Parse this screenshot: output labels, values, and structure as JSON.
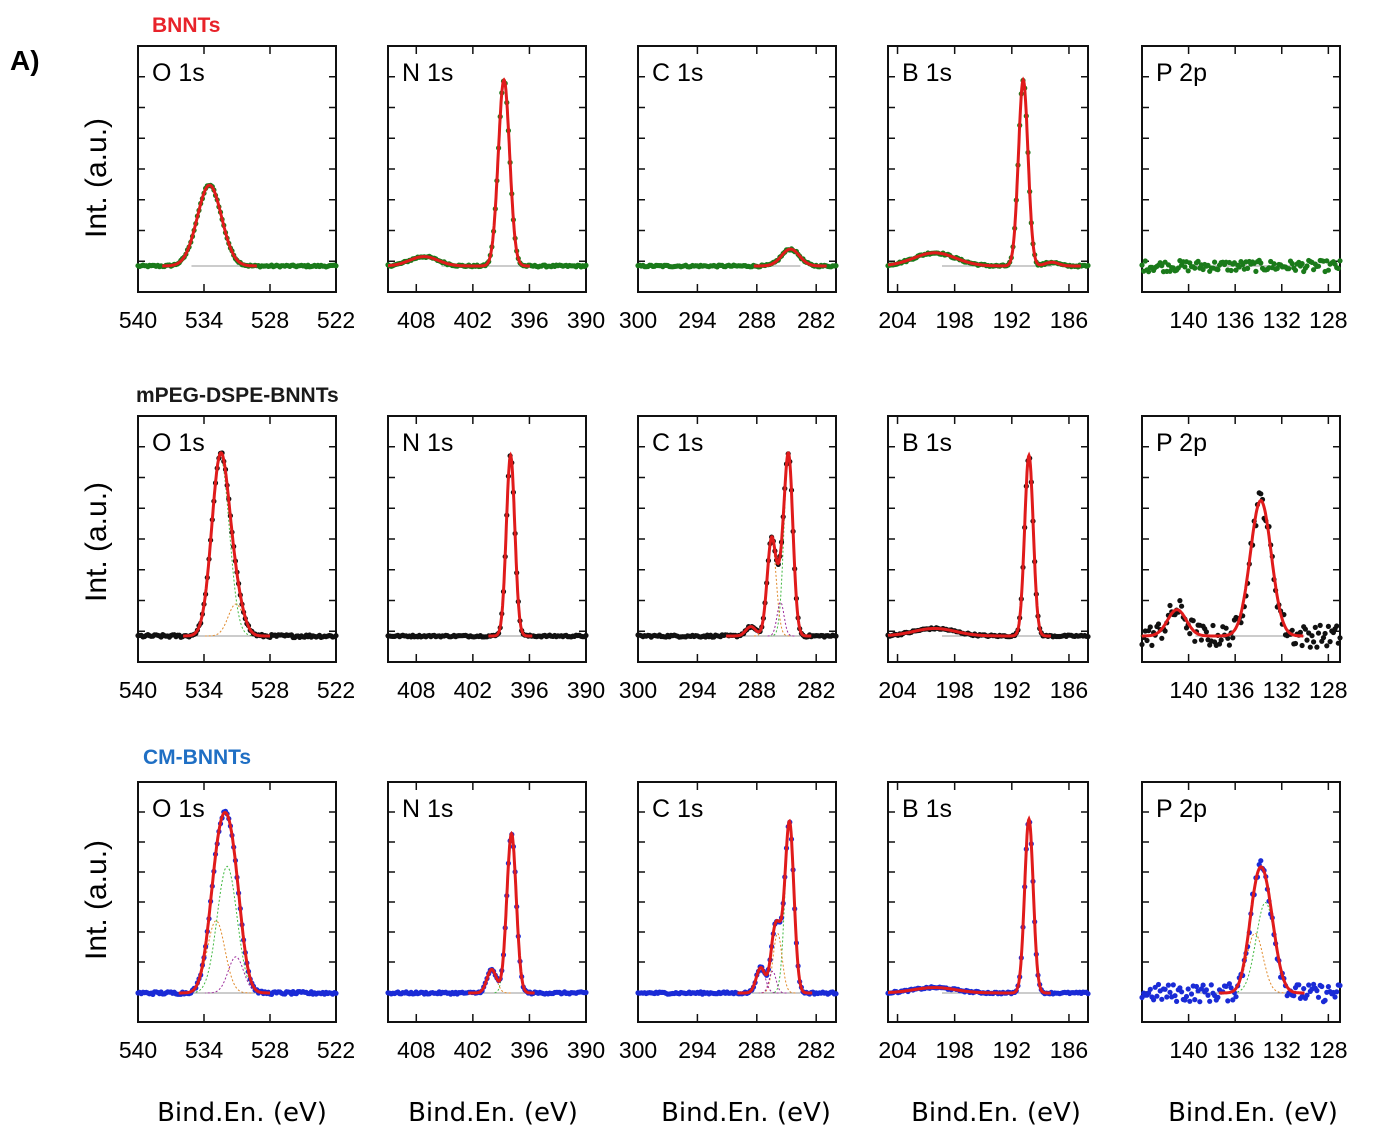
{
  "figure": {
    "panel_label": "A)",
    "x_axis_label": "Bind.En. (eV)",
    "y_axis_label": "Int. (a.u.)"
  },
  "rows": [
    {
      "title": "BNNTs",
      "title_color": "#e8232a",
      "marker_color": "#1a7a1a"
    },
    {
      "title": "mPEG-DSPE-BNNTs",
      "title_color": "#1a1a1a",
      "marker_color": "#111111"
    },
    {
      "title": "CM-BNNTs",
      "title_color": "#1f6fc4",
      "marker_color": "#1a2bd6"
    }
  ],
  "colors": {
    "fit": "#e01b1b",
    "baseline": "#9a9a9a",
    "comp_green": "#41b841",
    "comp_orange": "#e0892a",
    "comp_purple": "#9b2a9b"
  },
  "chart_data": [
    {
      "type": "scatter",
      "row": 0,
      "element": "O 1s",
      "xlim": [
        540,
        522
      ],
      "xticks": [
        "540",
        "534",
        "528",
        "522"
      ],
      "noise": 0.005,
      "series": [
        {
          "name": "",
          "peaks": [
            {
              "center": 533.5,
              "height": 0.43,
              "width": 1.1
            }
          ]
        }
      ]
    },
    {
      "type": "scatter",
      "row": 0,
      "element": "N 1s",
      "xlim": [
        411,
        390
      ],
      "xticks": [
        "408",
        "402",
        "396",
        "390"
      ],
      "noise": 0.005,
      "series": [
        {
          "name": "",
          "peaks": [
            {
              "center": 398.7,
              "height": 0.99,
              "width": 0.6
            },
            {
              "center": 407.2,
              "height": 0.05,
              "width": 1.5
            }
          ]
        }
      ]
    },
    {
      "type": "scatter",
      "row": 0,
      "element": "C 1s",
      "xlim": [
        300,
        280
      ],
      "xticks": [
        "300",
        "294",
        "288",
        "282"
      ],
      "noise": 0.005,
      "series": [
        {
          "name": "",
          "peaks": [
            {
              "center": 284.6,
              "height": 0.09,
              "width": 0.9
            }
          ]
        }
      ]
    },
    {
      "type": "scatter",
      "row": 0,
      "element": "B 1s",
      "xlim": [
        205,
        184
      ],
      "xticks": [
        "204",
        "198",
        "192",
        "186"
      ],
      "noise": 0.005,
      "series": [
        {
          "name": "",
          "peaks": [
            {
              "center": 190.8,
              "height": 0.99,
              "width": 0.5
            },
            {
              "center": 200.1,
              "height": 0.07,
              "width": 2.2
            },
            {
              "center": 187.8,
              "height": 0.02,
              "width": 0.7
            }
          ]
        }
      ]
    },
    {
      "type": "scatter",
      "row": 0,
      "element": "P 2p",
      "xlim": [
        144,
        127
      ],
      "xticks": [
        "140",
        "136",
        "132",
        "128"
      ],
      "noise": 0.03,
      "series": [
        {
          "name": "",
          "peaks": []
        }
      ]
    },
    {
      "type": "scatter",
      "row": 1,
      "element": "O 1s",
      "xlim": [
        540,
        522
      ],
      "xticks": [
        "540",
        "534",
        "528",
        "522"
      ],
      "noise": 0.008,
      "series": [
        {
          "name": "",
          "peaks": [
            {
              "center": 532.5,
              "height": 0.95,
              "width": 0.8
            },
            {
              "center": 531.1,
              "height": 0.17,
              "width": 0.7
            }
          ]
        }
      ]
    },
    {
      "type": "scatter",
      "row": 1,
      "element": "N 1s",
      "xlim": [
        411,
        390
      ],
      "xticks": [
        "408",
        "402",
        "396",
        "390"
      ],
      "noise": 0.005,
      "series": [
        {
          "name": "",
          "peaks": [
            {
              "center": 398.0,
              "height": 0.96,
              "width": 0.45
            }
          ]
        }
      ]
    },
    {
      "type": "scatter",
      "row": 1,
      "element": "C 1s",
      "xlim": [
        300,
        280
      ],
      "xticks": [
        "300",
        "294",
        "288",
        "282"
      ],
      "noise": 0.006,
      "series": [
        {
          "name": "",
          "peaks": [
            {
              "center": 284.8,
              "height": 0.96,
              "width": 0.45
            },
            {
              "center": 286.5,
              "height": 0.52,
              "width": 0.45
            },
            {
              "center": 288.6,
              "height": 0.05,
              "width": 0.5
            },
            {
              "center": 285.6,
              "height": 0.18,
              "width": 0.35
            }
          ]
        }
      ]
    },
    {
      "type": "scatter",
      "row": 1,
      "element": "B 1s",
      "xlim": [
        205,
        184
      ],
      "xticks": [
        "204",
        "198",
        "192",
        "186"
      ],
      "noise": 0.005,
      "series": [
        {
          "name": "",
          "peaks": [
            {
              "center": 190.2,
              "height": 0.96,
              "width": 0.45
            },
            {
              "center": 200.1,
              "height": 0.04,
              "width": 2.2
            }
          ]
        }
      ]
    },
    {
      "type": "scatter",
      "row": 1,
      "element": "P 2p",
      "xlim": [
        144,
        127
      ],
      "xticks": [
        "140",
        "136",
        "132",
        "128"
      ],
      "noise": 0.06,
      "series": [
        {
          "name": "",
          "peaks": [
            {
              "center": 133.8,
              "height": 0.72,
              "width": 0.9
            },
            {
              "center": 141.0,
              "height": 0.14,
              "width": 0.8
            }
          ]
        }
      ]
    },
    {
      "type": "scatter",
      "row": 2,
      "element": "O 1s",
      "xlim": [
        540,
        522
      ],
      "xticks": [
        "540",
        "534",
        "528",
        "522"
      ],
      "noise": 0.008,
      "series": [
        {
          "name": "",
          "peaks": [
            {
              "center": 531.9,
              "height": 0.7,
              "width": 0.9
            },
            {
              "center": 532.9,
              "height": 0.4,
              "width": 0.8
            },
            {
              "center": 531.1,
              "height": 0.2,
              "width": 0.7
            }
          ]
        }
      ]
    },
    {
      "type": "scatter",
      "row": 2,
      "element": "N 1s",
      "xlim": [
        411,
        390
      ],
      "xticks": [
        "408",
        "402",
        "396",
        "390"
      ],
      "noise": 0.006,
      "series": [
        {
          "name": "",
          "peaks": [
            {
              "center": 397.9,
              "height": 0.88,
              "width": 0.5
            },
            {
              "center": 400.0,
              "height": 0.13,
              "width": 0.5
            }
          ]
        }
      ]
    },
    {
      "type": "scatter",
      "row": 2,
      "element": "C 1s",
      "xlim": [
        300,
        280
      ],
      "xticks": [
        "300",
        "294",
        "288",
        "282"
      ],
      "noise": 0.006,
      "series": [
        {
          "name": "",
          "peaks": [
            {
              "center": 284.7,
              "height": 0.94,
              "width": 0.45
            },
            {
              "center": 285.9,
              "height": 0.33,
              "width": 0.45
            },
            {
              "center": 286.4,
              "height": 0.12,
              "width": 0.35
            },
            {
              "center": 287.6,
              "height": 0.14,
              "width": 0.45
            }
          ]
        }
      ]
    },
    {
      "type": "scatter",
      "row": 2,
      "element": "B 1s",
      "xlim": [
        205,
        184
      ],
      "xticks": [
        "204",
        "198",
        "192",
        "186"
      ],
      "noise": 0.005,
      "series": [
        {
          "name": "",
          "peaks": [
            {
              "center": 190.2,
              "height": 0.96,
              "width": 0.45
            },
            {
              "center": 200.1,
              "height": 0.03,
              "width": 2.2
            }
          ]
        }
      ]
    },
    {
      "type": "scatter",
      "row": 2,
      "element": "P 2p",
      "xlim": [
        144,
        127
      ],
      "xticks": [
        "140",
        "136",
        "132",
        "128"
      ],
      "noise": 0.05,
      "series": [
        {
          "name": "",
          "peaks": [
            {
              "center": 133.4,
              "height": 0.5,
              "width": 0.8
            },
            {
              "center": 134.3,
              "height": 0.33,
              "width": 0.7
            }
          ]
        }
      ]
    }
  ]
}
